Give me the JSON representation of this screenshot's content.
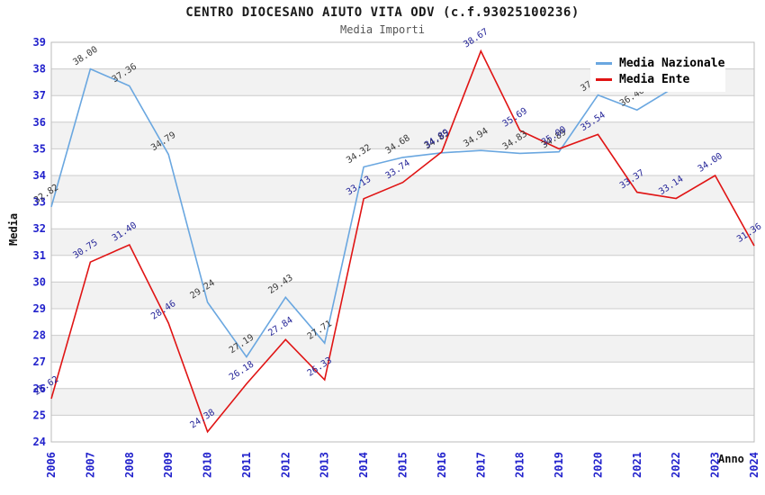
{
  "title": "CENTRO DIOCESANO AIUTO VITA ODV (c.f.93025100236)",
  "subtitle": "Media Importi",
  "axes": {
    "y_label": "Media",
    "x_label": "Anno",
    "y_ticks": [
      24,
      25,
      26,
      27,
      28,
      29,
      30,
      31,
      32,
      33,
      34,
      35,
      36,
      37,
      38,
      39
    ],
    "ylim": [
      24,
      39
    ]
  },
  "legend": {
    "items": [
      {
        "label": "Media Nazionale",
        "color": "#6aa7e0"
      },
      {
        "label": "Media Ente",
        "color": "#e01414"
      }
    ]
  },
  "colors": {
    "tick_label": "#2222cc",
    "grid_line": "#cccccc",
    "plot_border": "#bbbbbb",
    "stripe": "#f2f2f2",
    "nazionale_line": "#6aa7e0",
    "nazionale_point_label": "#3a3a3a",
    "ente_line": "#e01414",
    "ente_point_label": "#262699"
  },
  "chart_data": {
    "type": "line",
    "x": [
      "2006",
      "2007",
      "2008",
      "2009",
      "2010",
      "2011",
      "2012",
      "2013",
      "2014",
      "2015",
      "2016",
      "2017",
      "2018",
      "2019",
      "2020",
      "2021",
      "2022",
      "2023",
      "2024"
    ],
    "ylim": [
      24,
      39
    ],
    "grid": true,
    "legend_position": "top-right",
    "series": [
      {
        "name": "Media Nazionale",
        "values": [
          32.82,
          38.0,
          37.36,
          34.79,
          29.24,
          27.19,
          29.43,
          27.71,
          34.32,
          34.68,
          34.85,
          34.94,
          34.83,
          34.89,
          37.02,
          36.46,
          37.35,
          null,
          null
        ],
        "labels": [
          "32.82",
          "38.00",
          "37.36",
          "34.79",
          "29.24",
          "27.19",
          "29.43",
          "27.71",
          "34.32",
          "34.68",
          "34.85",
          "34.94",
          "34.83",
          "34.89",
          "37.02",
          "36.46",
          null,
          null,
          null
        ]
      },
      {
        "name": "Media Ente",
        "values": [
          25.62,
          30.75,
          31.4,
          28.46,
          24.38,
          26.18,
          27.84,
          26.33,
          33.13,
          33.74,
          34.89,
          38.67,
          35.69,
          35.0,
          35.54,
          33.37,
          33.14,
          34.0,
          31.36
        ],
        "labels": [
          "25.62",
          "30.75",
          "31.40",
          "28.46",
          "24.38",
          "26.18",
          "27.84",
          "26.33",
          "33.13",
          "33.74",
          "34.89",
          "38.67",
          "35.69",
          "35.00",
          "35.54",
          "33.37",
          "33.14",
          "34.00",
          "31.36"
        ]
      }
    ]
  }
}
